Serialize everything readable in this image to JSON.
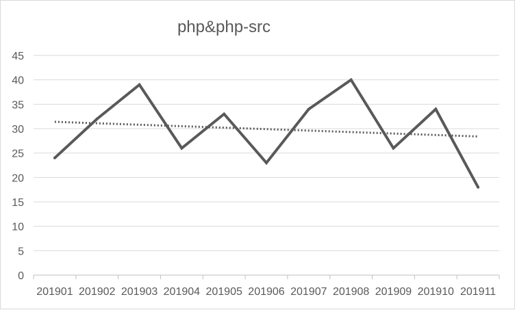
{
  "chart_data": {
    "type": "line",
    "title": "php&php-src",
    "xlabel": "",
    "ylabel": "",
    "categories": [
      "201901",
      "201902",
      "201903",
      "201904",
      "201905",
      "201906",
      "201907",
      "201908",
      "201909",
      "201910",
      "201911"
    ],
    "series": [
      {
        "values": [
          24,
          32,
          39,
          26,
          33,
          23,
          34,
          40,
          26,
          34,
          18
        ],
        "color": "#595959",
        "style": "solid"
      },
      {
        "values": [
          31.4,
          31.1,
          30.8,
          30.5,
          30.2,
          29.9,
          29.6,
          29.3,
          29.0,
          28.7,
          28.4
        ],
        "color": "#595959",
        "style": "dotted",
        "kind": "linear-trendline"
      }
    ],
    "ylim": [
      0,
      45
    ],
    "yticks": [
      0,
      5,
      10,
      15,
      20,
      25,
      30,
      35,
      40,
      45
    ],
    "grid": true,
    "legend": "none",
    "colors": {
      "grid": "#d9d9d9",
      "axis": "#bfbfbf",
      "text": "#595959",
      "line": "#595959"
    }
  }
}
